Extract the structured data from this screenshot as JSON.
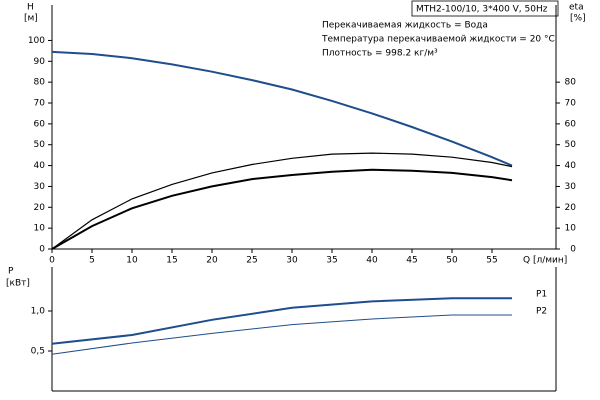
{
  "chart_data": [
    {
      "type": "line",
      "info_box": "MTH2-100/10, 3*400 V, 50Hz",
      "annotations": [
        "Перекачиваемая жидкость = Вода",
        "Температура перекачиваемой жидкости = 20 °C",
        "Плотность = 998.2 кг/м³"
      ],
      "y_label": "H",
      "y_unit": "[м]",
      "y2_label": "eta",
      "y2_unit": "[%]",
      "x_label": "Q [л/мин]",
      "x": [
        0,
        5,
        10,
        15,
        20,
        25,
        30,
        35,
        40,
        45,
        50,
        55,
        57.5
      ],
      "xlim": [
        0,
        63
      ],
      "xticks": [
        0,
        5,
        10,
        15,
        20,
        25,
        30,
        35,
        40,
        45,
        50,
        55
      ],
      "ylim": [
        0,
        117
      ],
      "yticks": [
        0,
        10,
        20,
        30,
        40,
        50,
        60,
        70,
        80,
        90,
        100
      ],
      "y2lim": [
        0,
        117
      ],
      "y2ticks": [
        0,
        10,
        20,
        30,
        40,
        50,
        60,
        70,
        80
      ],
      "series": [
        {
          "color": "#1f4e8c",
          "values": [
            94.5,
            93.5,
            91.5,
            88.5,
            85,
            81,
            76.5,
            71,
            65,
            58.5,
            51.5,
            44,
            40
          ]
        },
        {
          "color": "#000000",
          "axis": "y2",
          "values": [
            0,
            14,
            24,
            31,
            36.5,
            40.5,
            43.5,
            45.5,
            46,
            45.5,
            44,
            41.5,
            39.5
          ]
        },
        {
          "color": "#000000",
          "axis": "y2",
          "values": [
            0,
            11,
            19.5,
            25.5,
            30,
            33.5,
            35.5,
            37,
            38,
            37.5,
            36.5,
            34.5,
            33
          ]
        }
      ]
    },
    {
      "type": "line",
      "y_label": "P",
      "y_unit": "[кВт]",
      "x": [
        0,
        10,
        20,
        30,
        40,
        50,
        57.5
      ],
      "xlim": [
        0,
        63
      ],
      "ylim": [
        0,
        1.55
      ],
      "yticks": [
        {
          "value": 0.5,
          "label": "0,5"
        },
        {
          "value": 1.0,
          "label": "1,0"
        }
      ],
      "series": [
        {
          "name": "P1",
          "color": "#1f4e8c",
          "values": [
            0.59,
            0.7,
            0.89,
            1.04,
            1.12,
            1.16,
            1.16
          ]
        },
        {
          "name": "P2",
          "color": "#1f4e8c",
          "values": [
            0.46,
            0.6,
            0.72,
            0.83,
            0.9,
            0.95,
            0.95
          ]
        }
      ]
    }
  ]
}
